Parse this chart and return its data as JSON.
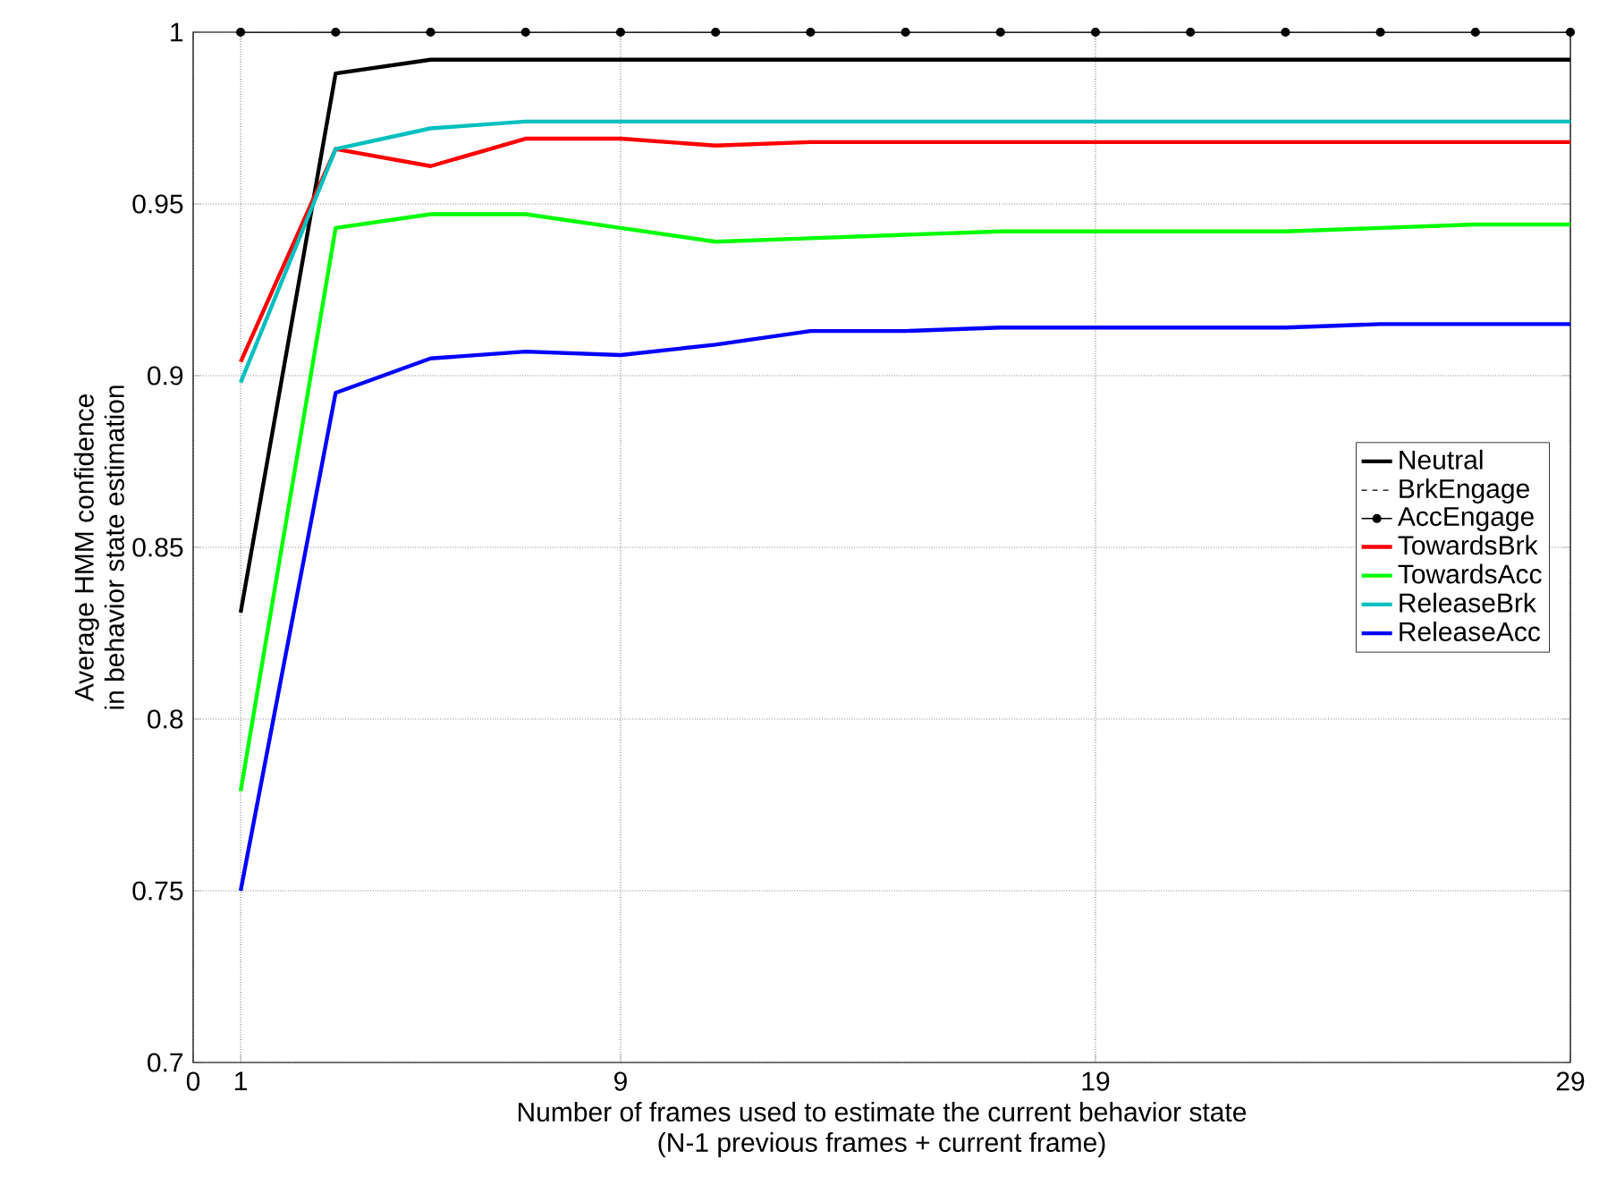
{
  "chart_data": {
    "type": "line",
    "xlabel": "Number of frames used to estimate the current behavior state\n(N-1 previous frames + current frame)",
    "ylabel": "Average HMM confidence\nin behavior state estimation",
    "x": [
      1,
      3,
      5,
      7,
      9,
      11,
      13,
      15,
      17,
      19,
      21,
      23,
      25,
      27,
      29
    ],
    "xlim": [
      0,
      29
    ],
    "xticks": [
      0,
      1,
      9,
      19,
      29
    ],
    "ylim": [
      0.7,
      1
    ],
    "yticks": [
      0.7,
      0.75,
      0.8,
      0.85,
      0.9,
      0.95,
      1
    ],
    "grid": true,
    "legend": "right",
    "marker": "none",
    "line_style": "solid",
    "series": [
      {
        "name": "Neutral",
        "color": "#000000",
        "values": [
          0.831,
          0.988,
          0.992,
          0.992,
          0.992,
          0.992,
          0.992,
          0.992,
          0.992,
          0.992,
          0.992,
          0.992,
          0.992,
          0.992,
          0.992
        ]
      },
      {
        "name": "BrkEngage",
        "color": "#000000",
        "line_style": "dashed",
        "values": [
          null,
          null,
          null,
          null,
          null,
          null,
          null,
          null,
          null,
          null,
          null,
          null,
          null,
          null,
          null
        ]
      },
      {
        "name": "AccEngage",
        "color": "#000000",
        "marker": "circle",
        "values": [
          1,
          1,
          1,
          1,
          1,
          1,
          1,
          1,
          1,
          1,
          1,
          1,
          1,
          1,
          1
        ]
      },
      {
        "name": "TowardsBrk",
        "color": "#ff0000",
        "values": [
          0.904,
          0.966,
          0.961,
          0.969,
          0.969,
          0.967,
          0.968,
          0.968,
          0.968,
          0.968,
          0.968,
          0.968,
          0.968,
          0.968,
          0.968
        ]
      },
      {
        "name": "TowardsAcc",
        "color": "#00ff00",
        "values": [
          0.779,
          0.943,
          0.947,
          0.947,
          0.943,
          0.939,
          0.94,
          0.941,
          0.942,
          0.942,
          0.942,
          0.942,
          0.943,
          0.944,
          0.944
        ]
      },
      {
        "name": "ReleaseBrk",
        "color": "#00bfbf",
        "values": [
          0.898,
          0.966,
          0.972,
          0.974,
          0.974,
          0.974,
          0.974,
          0.974,
          0.974,
          0.974,
          0.974,
          0.974,
          0.974,
          0.974,
          0.974
        ]
      },
      {
        "name": "ReleaseAcc",
        "color": "#0000ff",
        "values": [
          0.75,
          0.895,
          0.905,
          0.907,
          0.906,
          0.909,
          0.913,
          0.913,
          0.914,
          0.914,
          0.914,
          0.914,
          0.915,
          0.915,
          0.915
        ]
      }
    ]
  }
}
